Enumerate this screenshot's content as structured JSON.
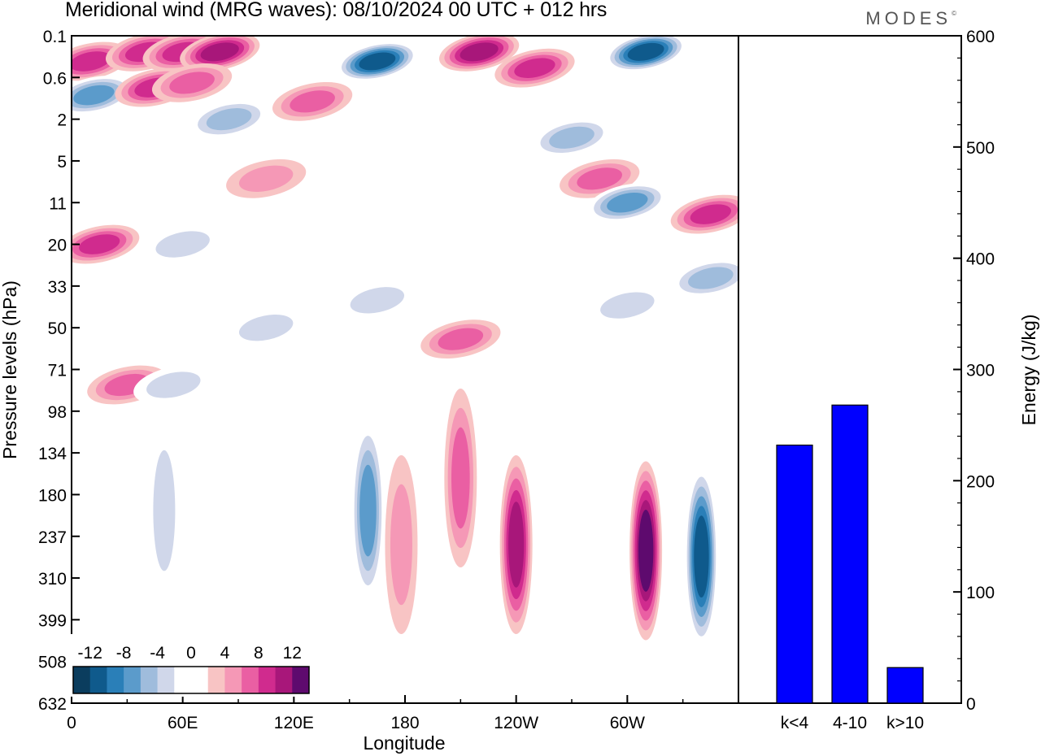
{
  "header": {
    "title": "Meridional wind (MRG waves):  08/10/2024  00 UTC  + 012 hrs",
    "brand": "MODES",
    "brand_mark": "©"
  },
  "chart_data": [
    {
      "type": "heatmap",
      "title": "Meridional wind (MRG waves):  08/10/2024  00 UTC  + 012 hrs",
      "xlabel": "Longitude",
      "ylabel": "Pressure levels (hPa)",
      "x_ticks": [
        "0",
        "60E",
        "120E",
        "180",
        "120W",
        "60W"
      ],
      "x_tick_values": [
        0,
        60,
        120,
        180,
        240,
        300
      ],
      "xlim": [
        0,
        360
      ],
      "y_ticks": [
        "0.1",
        "0.6",
        "2",
        "5",
        "11",
        "20",
        "33",
        "50",
        "71",
        "98",
        "134",
        "180",
        "237",
        "310",
        "399",
        "508",
        "632"
      ],
      "colorbar": {
        "labels": [
          "-12",
          "-8",
          "-4",
          "0",
          "4",
          "8",
          "12"
        ],
        "levels": [
          -14,
          -12,
          -10,
          -8,
          -6,
          -4,
          -2,
          2,
          4,
          6,
          8,
          10,
          12,
          14
        ],
        "colors": [
          "#0b3d5e",
          "#0f5a8c",
          "#2a7fb8",
          "#5b9bcb",
          "#9fbcdc",
          "#d0d7ea",
          "#ffffff",
          "#ffffff",
          "#f8c4c4",
          "#f598b6",
          "#ea5fa3",
          "#d02b8e",
          "#a8177a",
          "#5e0a6e"
        ]
      },
      "features": [
        {
          "lon": 10,
          "plev": "0.3",
          "value": 10
        },
        {
          "lon": 12,
          "plev": "1",
          "value": -9
        },
        {
          "lon": 40,
          "plev": "0.2",
          "value": 10
        },
        {
          "lon": 60,
          "plev": "0.2",
          "value": 10
        },
        {
          "lon": 80,
          "plev": "0.2",
          "value": 11
        },
        {
          "lon": 45,
          "plev": "0.8",
          "value": 9
        },
        {
          "lon": 65,
          "plev": "0.7",
          "value": 8
        },
        {
          "lon": 85,
          "plev": "2",
          "value": -7
        },
        {
          "lon": 105,
          "plev": "7",
          "value": 6
        },
        {
          "lon": 130,
          "plev": "1.2",
          "value": 7
        },
        {
          "lon": 165,
          "plev": "0.3",
          "value": -13
        },
        {
          "lon": 220,
          "plev": "0.2",
          "value": 12
        },
        {
          "lon": 250,
          "plev": "0.4",
          "value": 9
        },
        {
          "lon": 310,
          "plev": "0.2",
          "value": -14
        },
        {
          "lon": 270,
          "plev": "3",
          "value": -8
        },
        {
          "lon": 285,
          "plev": "7",
          "value": 7
        },
        {
          "lon": 300,
          "plev": "11",
          "value": -9
        },
        {
          "lon": 345,
          "plev": "13",
          "value": 9
        },
        {
          "lon": 15,
          "plev": "20",
          "value": 9
        },
        {
          "lon": 60,
          "plev": "20",
          "value": -6
        },
        {
          "lon": 165,
          "plev": "38",
          "value": -5
        },
        {
          "lon": 105,
          "plev": "50",
          "value": -6
        },
        {
          "lon": 210,
          "plev": "55",
          "value": 8
        },
        {
          "lon": 300,
          "plev": "40",
          "value": -6
        },
        {
          "lon": 345,
          "plev": "30",
          "value": -7
        },
        {
          "lon": 30,
          "plev": "80",
          "value": 7
        },
        {
          "lon": 55,
          "plev": "80",
          "value": -6
        },
        {
          "lon": 50,
          "plev": "200",
          "value": -6
        },
        {
          "lon": 160,
          "plev": "200",
          "value": -10
        },
        {
          "lon": 178,
          "plev": "250",
          "value": 6
        },
        {
          "lon": 210,
          "plev": "160",
          "value": 7
        },
        {
          "lon": 240,
          "plev": "250",
          "value": 12
        },
        {
          "lon": 310,
          "plev": "260",
          "value": 13
        },
        {
          "lon": 340,
          "plev": "270",
          "value": -13
        }
      ]
    },
    {
      "type": "bar",
      "categories": [
        "k<4",
        "4-10",
        "k>10"
      ],
      "values": [
        232,
        268,
        32
      ],
      "ylabel": "Energy (J/kg)",
      "ylim": [
        0,
        600
      ],
      "y_ticks": [
        0,
        100,
        200,
        300,
        400,
        500,
        600
      ],
      "bar_color": "#0000ff"
    }
  ]
}
